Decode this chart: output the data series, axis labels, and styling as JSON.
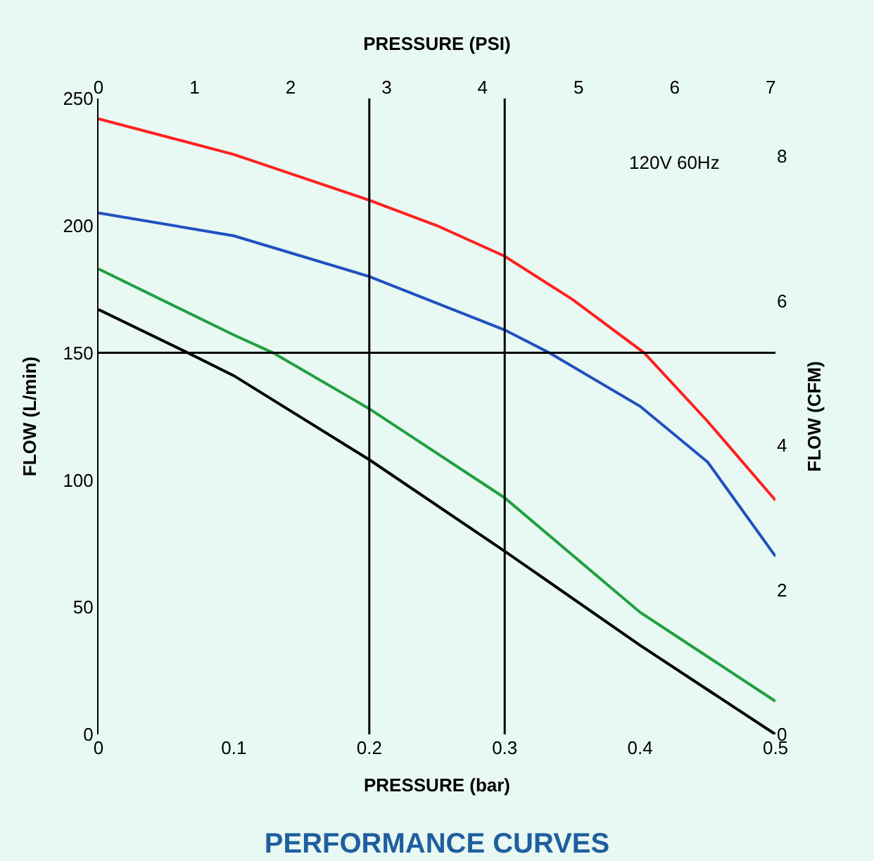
{
  "chart_data": {
    "type": "line",
    "title": "PERFORMANCE CURVES",
    "xlabel": "PRESSURE (bar)",
    "ylabel": "FLOW (L/min)",
    "y2label": "FLOW (CFM)",
    "x2label": "PRESSURE (PSI)",
    "annotations": [
      "120V 60Hz"
    ],
    "xlim": [
      0,
      0.5
    ],
    "xticks": [
      0,
      0.1,
      0.2,
      0.3,
      0.4,
      0.5
    ],
    "x2lim": [
      0,
      7.05
    ],
    "x2ticks": [
      0,
      1,
      2,
      3,
      4,
      5,
      6,
      7
    ],
    "ylim": [
      0,
      250
    ],
    "yticks": [
      0,
      50,
      100,
      150,
      200,
      250
    ],
    "y2lim": [
      0,
      8.8
    ],
    "y2ticks": [
      0,
      2,
      4,
      6,
      8
    ],
    "ref_lines": [
      {
        "axis": "x",
        "value": 0.2,
        "color": "#000000"
      },
      {
        "axis": "x",
        "value": 0.3,
        "color": "#000000"
      },
      {
        "axis": "y",
        "value": 150,
        "color": "#000000"
      }
    ],
    "grid": false,
    "marker": "none",
    "line_style": "solid",
    "series": [
      {
        "color": "#ff2020",
        "x": [
          0,
          0.05,
          0.1,
          0.15,
          0.2,
          0.25,
          0.3,
          0.35,
          0.403,
          0.45,
          0.5
        ],
        "values": [
          242,
          235,
          228,
          219,
          210,
          200,
          188,
          171,
          150,
          123,
          92
        ]
      },
      {
        "color": "#2050c0",
        "x": [
          0,
          0.1,
          0.2,
          0.3,
          0.333,
          0.4,
          0.45,
          0.5
        ],
        "values": [
          205,
          196,
          180,
          159,
          150,
          129,
          107,
          70
        ]
      },
      {
        "color": "#20a040",
        "x": [
          0,
          0.1,
          0.129,
          0.2,
          0.3,
          0.4,
          0.5
        ],
        "values": [
          183,
          157,
          150,
          128,
          93,
          48,
          13
        ]
      },
      {
        "color": "#000000",
        "x": [
          0,
          0.066,
          0.1,
          0.2,
          0.3,
          0.4,
          0.5
        ],
        "values": [
          167,
          150,
          141,
          108,
          72,
          35,
          0
        ]
      }
    ]
  }
}
